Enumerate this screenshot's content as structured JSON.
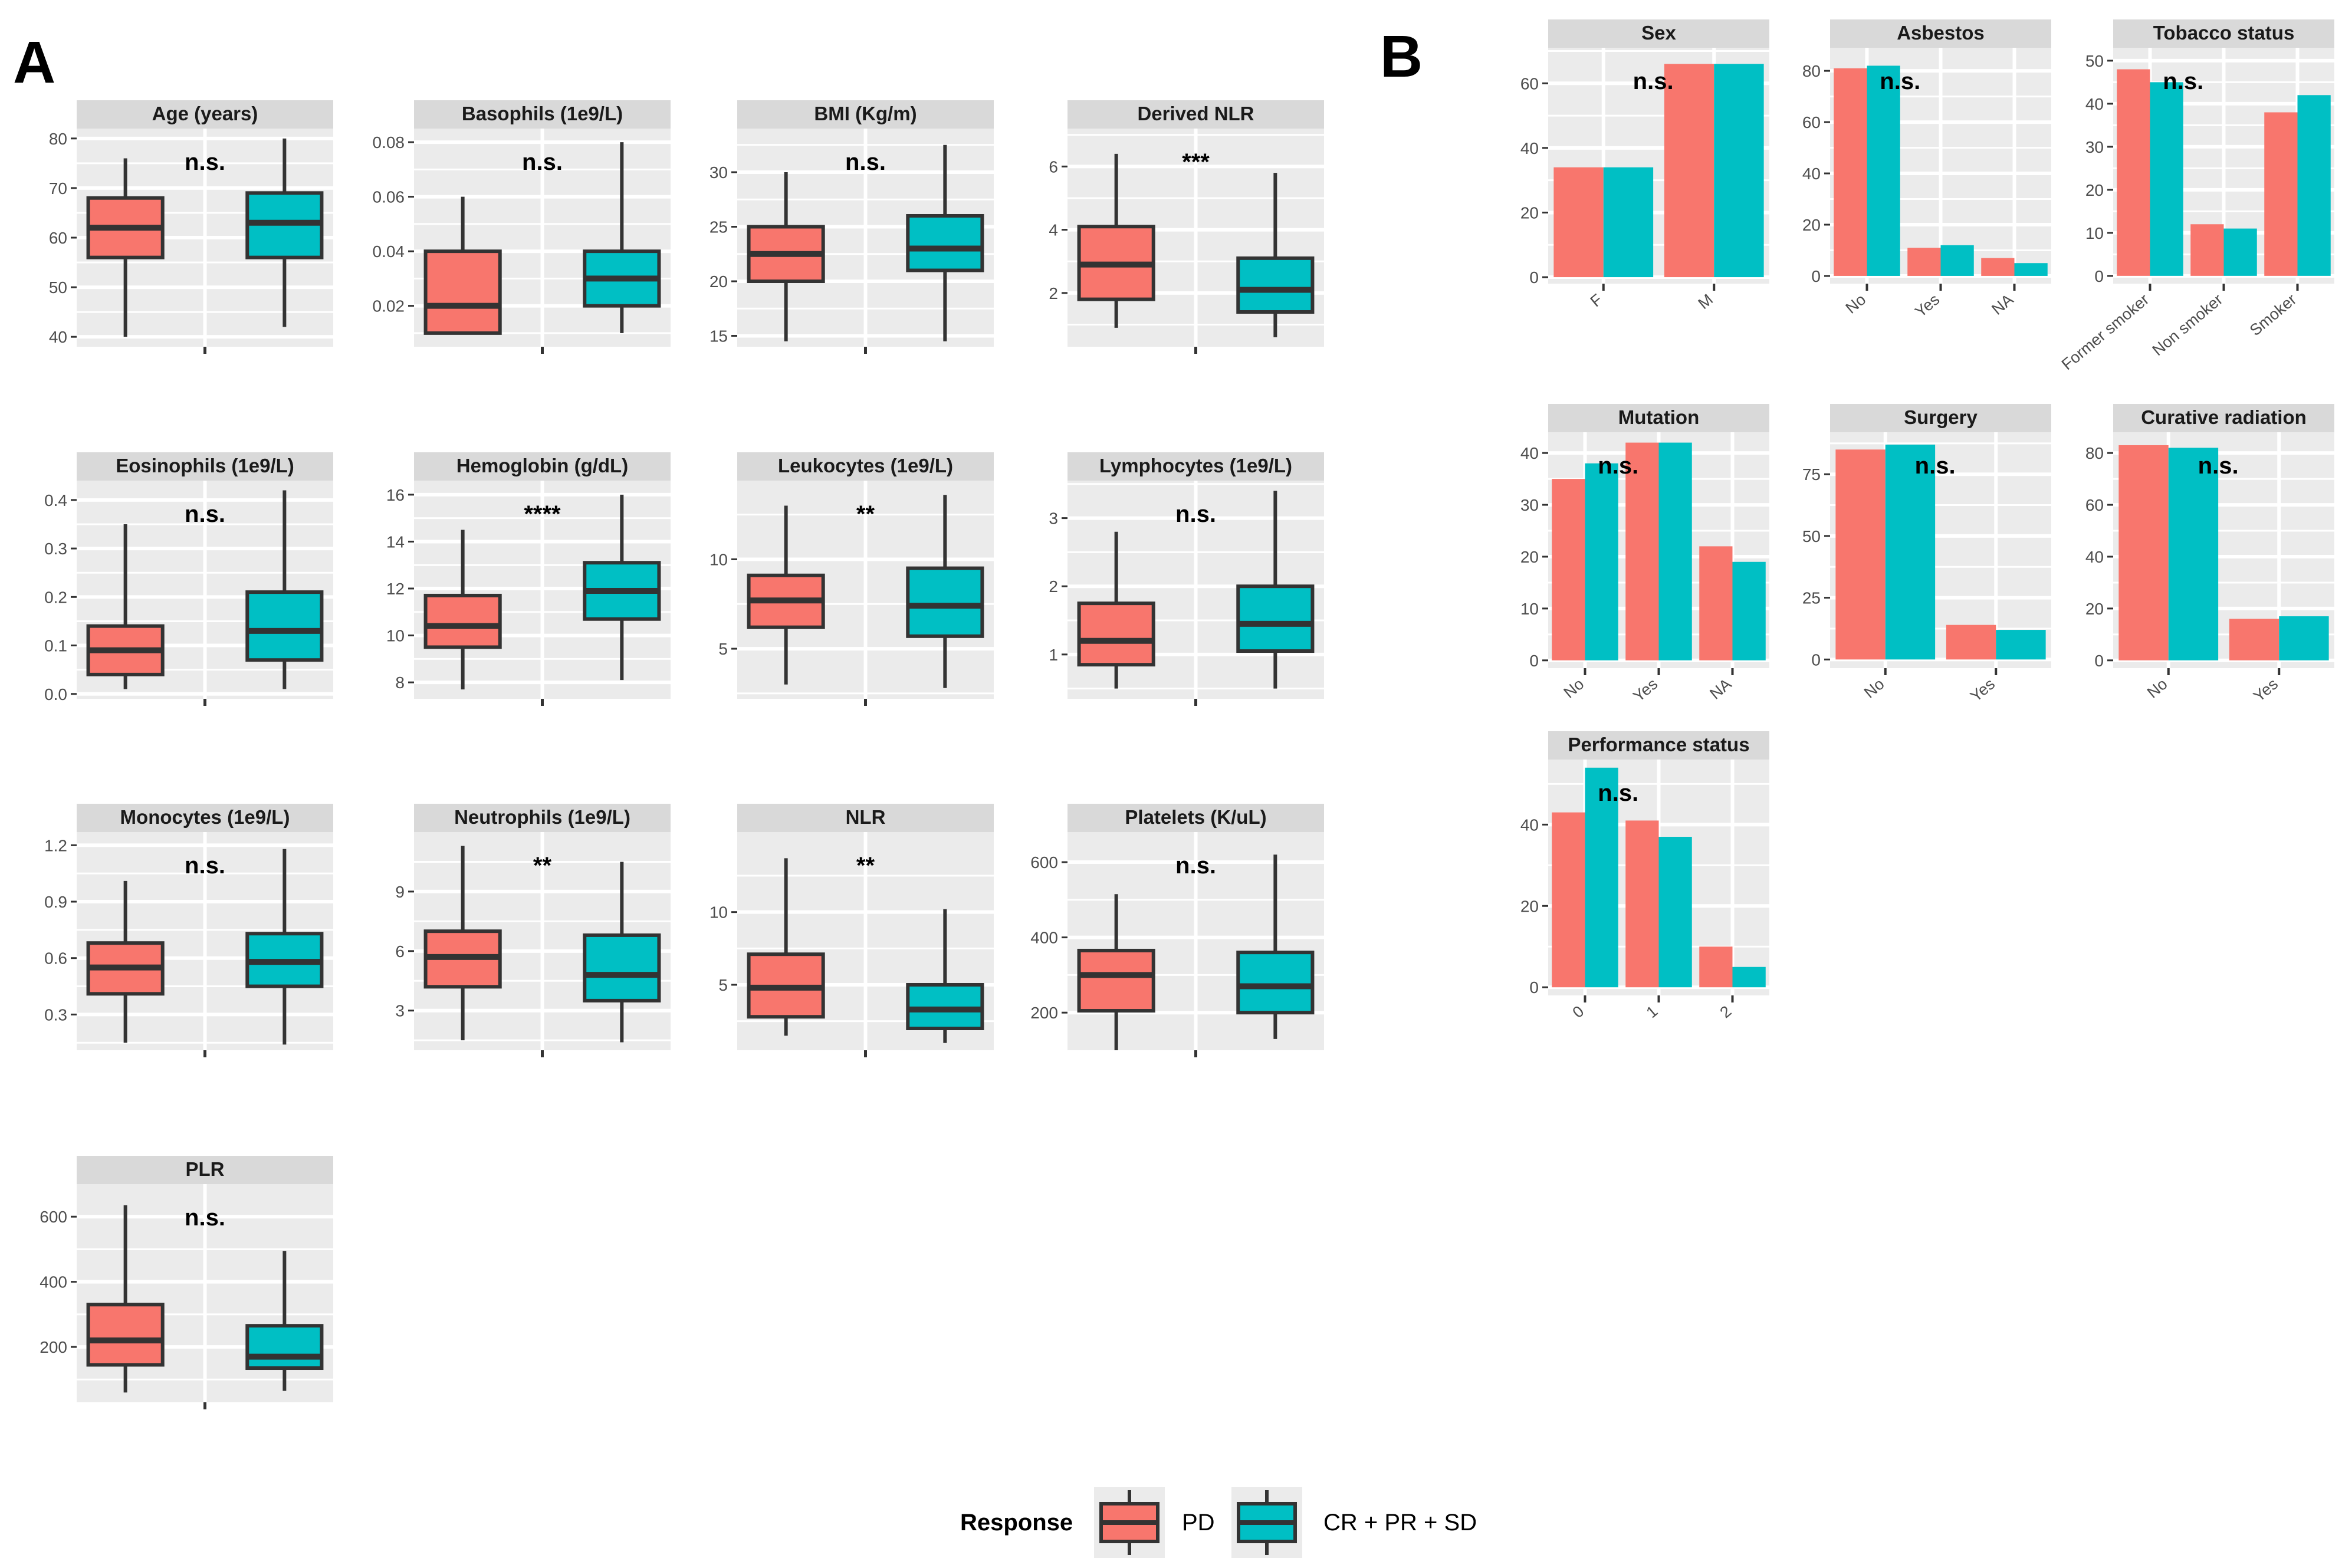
{
  "panel_labels": [
    "A",
    "B"
  ],
  "colors": {
    "PD": "#F8766D",
    "CR + PR + SD": "#00BFC4",
    "panel_bg": "#EBEBEB",
    "strip_bg": "#D9D9D9",
    "grid": "#FFFFFF",
    "outline": "#333333"
  },
  "legend": {
    "title": "Response",
    "entries": [
      {
        "label": "PD",
        "color": "#F8766D"
      },
      {
        "label": "CR + PR + SD",
        "color": "#00BFC4"
      }
    ]
  },
  "chart_data": [
    {
      "panel": "A",
      "type": "boxplot",
      "groups": [
        "PD",
        "CR + PR + SD"
      ],
      "facets": [
        {
          "title": "Age (years)",
          "ylim": [
            38,
            82
          ],
          "ticks": [
            40,
            50,
            60,
            70,
            80
          ],
          "sig": "n.s.",
          "boxes": [
            {
              "min": 40,
              "q1": 56,
              "median": 62,
              "q3": 68,
              "max": 76
            },
            {
              "min": 42,
              "q1": 56,
              "median": 63,
              "q3": 69,
              "max": 80
            }
          ]
        },
        {
          "title": "Basophils (1e9/L)",
          "ylim": [
            0.005,
            0.085
          ],
          "ticks": [
            0.02,
            0.04,
            0.06,
            0.08
          ],
          "tick_labels": [
            "0.02",
            "0.04",
            "0.06",
            "0.08"
          ],
          "sig": "n.s.",
          "boxes": [
            {
              "min": 0.01,
              "q1": 0.01,
              "median": 0.02,
              "q3": 0.04,
              "max": 0.06
            },
            {
              "min": 0.01,
              "q1": 0.02,
              "median": 0.03,
              "q3": 0.04,
              "max": 0.08
            }
          ]
        },
        {
          "title": "BMI (Kg/m)",
          "ylim": [
            14,
            34
          ],
          "ticks": [
            15,
            20,
            25,
            30
          ],
          "sig": "n.s.",
          "boxes": [
            {
              "min": 14.5,
              "q1": 20,
              "median": 22.5,
              "q3": 25,
              "max": 30
            },
            {
              "min": 14.5,
              "q1": 21,
              "median": 23,
              "q3": 26,
              "max": 32.5
            }
          ]
        },
        {
          "title": "Derived NLR",
          "ylim": [
            0.3,
            7.2
          ],
          "ticks": [
            2,
            4,
            6
          ],
          "sig": "***",
          "boxes": [
            {
              "min": 0.9,
              "q1": 1.8,
              "median": 2.9,
              "q3": 4.1,
              "max": 6.4
            },
            {
              "min": 0.6,
              "q1": 1.4,
              "median": 2.1,
              "q3": 3.1,
              "max": 5.8
            }
          ]
        },
        {
          "title": "Eosinophils (1e9/L)",
          "ylim": [
            -0.01,
            0.44
          ],
          "ticks": [
            0,
            0.1,
            0.2,
            0.3,
            0.4
          ],
          "tick_labels": [
            "0.0",
            "0.1",
            "0.2",
            "0.3",
            "0.4"
          ],
          "sig": "n.s.",
          "boxes": [
            {
              "min": 0.01,
              "q1": 0.04,
              "median": 0.09,
              "q3": 0.14,
              "max": 0.35
            },
            {
              "min": 0.01,
              "q1": 0.07,
              "median": 0.13,
              "q3": 0.21,
              "max": 0.42
            }
          ]
        },
        {
          "title": "Hemoglobin (g/dL)",
          "ylim": [
            7.3,
            16.6
          ],
          "ticks": [
            8,
            10,
            12,
            14,
            16
          ],
          "sig": "****",
          "boxes": [
            {
              "min": 7.7,
              "q1": 9.5,
              "median": 10.4,
              "q3": 11.7,
              "max": 14.5
            },
            {
              "min": 8.1,
              "q1": 10.7,
              "median": 11.9,
              "q3": 13.1,
              "max": 16
            }
          ]
        },
        {
          "title": "Leukocytes (1e9/L)",
          "ylim": [
            2.2,
            14.4
          ],
          "ticks": [
            5,
            10
          ],
          "sig": "**",
          "boxes": [
            {
              "min": 3,
              "q1": 6.2,
              "median": 7.7,
              "q3": 9.1,
              "max": 13
            },
            {
              "min": 2.8,
              "q1": 5.7,
              "median": 7.4,
              "q3": 9.5,
              "max": 13.6
            }
          ]
        },
        {
          "title": "Lymphocytes (1e9/L)",
          "ylim": [
            0.35,
            3.55
          ],
          "ticks": [
            1,
            2,
            3
          ],
          "sig": "n.s.",
          "boxes": [
            {
              "min": 0.5,
              "q1": 0.85,
              "median": 1.2,
              "q3": 1.75,
              "max": 2.8
            },
            {
              "min": 0.5,
              "q1": 1.05,
              "median": 1.45,
              "q3": 2,
              "max": 3.4
            }
          ]
        },
        {
          "title": "Monocytes (1e9/L)",
          "ylim": [
            0.11,
            1.27
          ],
          "ticks": [
            0.3,
            0.6,
            0.9,
            1.2
          ],
          "tick_labels": [
            "0.3",
            "0.6",
            "0.9",
            "1.2"
          ],
          "sig": "n.s.",
          "boxes": [
            {
              "min": 0.15,
              "q1": 0.41,
              "median": 0.55,
              "q3": 0.68,
              "max": 1.01
            },
            {
              "min": 0.14,
              "q1": 0.45,
              "median": 0.58,
              "q3": 0.73,
              "max": 1.18
            }
          ]
        },
        {
          "title": "Neutrophils (1e9/L)",
          "ylim": [
            1,
            12
          ],
          "ticks": [
            3,
            6,
            9
          ],
          "sig": "**",
          "boxes": [
            {
              "min": 1.5,
              "q1": 4.2,
              "median": 5.7,
              "q3": 7,
              "max": 11.3
            },
            {
              "min": 1.4,
              "q1": 3.5,
              "median": 4.8,
              "q3": 6.8,
              "max": 10.5
            }
          ]
        },
        {
          "title": "NLR",
          "ylim": [
            0.5,
            15.5
          ],
          "ticks": [
            5,
            10
          ],
          "sig": "**",
          "boxes": [
            {
              "min": 1.5,
              "q1": 2.8,
              "median": 4.8,
              "q3": 7.1,
              "max": 13.7
            },
            {
              "min": 1,
              "q1": 2,
              "median": 3.3,
              "q3": 5,
              "max": 10.2
            }
          ]
        },
        {
          "title": "Platelets (K/uL)",
          "ylim": [
            100,
            680
          ],
          "ticks": [
            200,
            400,
            600
          ],
          "sig": "n.s.",
          "boxes": [
            {
              "min": 100,
              "q1": 205,
              "median": 300,
              "q3": 365,
              "max": 515
            },
            {
              "min": 130,
              "q1": 200,
              "median": 270,
              "q3": 360,
              "max": 620
            }
          ]
        },
        {
          "title": "PLR",
          "ylim": [
            30,
            700
          ],
          "ticks": [
            200,
            400,
            600
          ],
          "sig": "n.s.",
          "boxes": [
            {
              "min": 60,
              "q1": 145,
              "median": 220,
              "q3": 330,
              "max": 635
            },
            {
              "min": 65,
              "q1": 135,
              "median": 170,
              "q3": 265,
              "max": 495
            }
          ]
        }
      ]
    },
    {
      "panel": "B",
      "type": "bar",
      "groups": [
        "PD",
        "CR + PR + SD"
      ],
      "facets": [
        {
          "title": "Sex",
          "categories": [
            "F",
            "M"
          ],
          "series": [
            {
              "name": "PD",
              "values": [
                34,
                66
              ]
            },
            {
              "name": "CR + PR + SD",
              "values": [
                34,
                66
              ]
            }
          ],
          "ylim": [
            -2,
            71
          ],
          "ticks": [
            0,
            20,
            40,
            60
          ],
          "sig": "n.s."
        },
        {
          "title": "Asbestos",
          "categories": [
            "No",
            "Yes",
            "NA"
          ],
          "series": [
            {
              "name": "PD",
              "values": [
                81,
                11,
                7
              ]
            },
            {
              "name": "CR + PR + SD",
              "values": [
                82,
                12,
                5
              ]
            }
          ],
          "ylim": [
            -3,
            89
          ],
          "ticks": [
            0,
            20,
            40,
            60,
            80
          ],
          "sig": "n.s."
        },
        {
          "title": "Tobacco status",
          "categories": [
            "Former smoker",
            "Non smoker",
            "Smoker"
          ],
          "series": [
            {
              "name": "PD",
              "values": [
                48,
                12,
                38
              ]
            },
            {
              "name": "CR + PR + SD",
              "values": [
                45,
                11,
                42
              ]
            }
          ],
          "ylim": [
            -1.8,
            53
          ],
          "ticks": [
            0,
            10,
            20,
            30,
            40,
            50
          ],
          "sig": "n.s."
        },
        {
          "title": "Mutation",
          "categories": [
            "No",
            "Yes",
            "NA"
          ],
          "series": [
            {
              "name": "PD",
              "values": [
                35,
                42,
                22
              ]
            },
            {
              "name": "CR + PR + SD",
              "values": [
                38,
                42,
                19
              ]
            }
          ],
          "ylim": [
            -1.5,
            44
          ],
          "ticks": [
            0,
            10,
            20,
            30,
            40
          ],
          "sig": "n.s."
        },
        {
          "title": "Surgery",
          "categories": [
            "No",
            "Yes"
          ],
          "series": [
            {
              "name": "PD",
              "values": [
                85,
                14
              ]
            },
            {
              "name": "CR + PR + SD",
              "values": [
                87,
                12
              ]
            }
          ],
          "ylim": [
            -3.5,
            92
          ],
          "ticks": [
            0,
            25,
            50,
            75
          ],
          "sig": "n.s."
        },
        {
          "title": "Curative radiation",
          "categories": [
            "No",
            "Yes"
          ],
          "series": [
            {
              "name": "PD",
              "values": [
                83,
                16
              ]
            },
            {
              "name": "CR + PR + SD",
              "values": [
                82,
                17
              ]
            }
          ],
          "ylim": [
            -3,
            88
          ],
          "ticks": [
            0,
            20,
            40,
            60,
            80
          ],
          "sig": "n.s."
        },
        {
          "title": "Performance status",
          "categories": [
            "0",
            "1",
            "2"
          ],
          "series": [
            {
              "name": "PD",
              "values": [
                43,
                41,
                10
              ]
            },
            {
              "name": "CR + PR + SD",
              "values": [
                54,
                37,
                5
              ]
            }
          ],
          "ylim": [
            -2,
            56
          ],
          "ticks": [
            0,
            20,
            40
          ],
          "sig": "n.s."
        }
      ]
    }
  ]
}
